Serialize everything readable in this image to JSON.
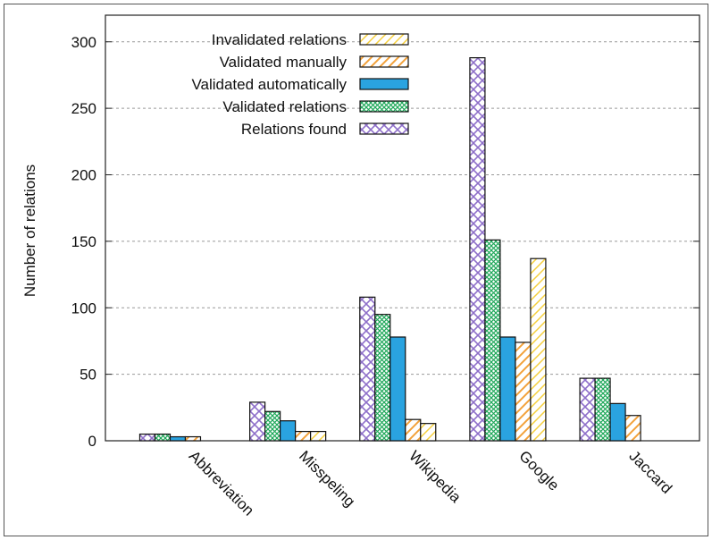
{
  "chart_data": {
    "type": "bar",
    "ylabel": "Number of relations",
    "xlabel": "",
    "ylim": [
      0,
      320
    ],
    "yticks": [
      0,
      50,
      100,
      150,
      200,
      250,
      300
    ],
    "grid": "horizontal dashed",
    "legend_position": "top-left",
    "categories": [
      "Abbreviation",
      "Misspeling",
      "Wikipedia",
      "Google",
      "Jaccard"
    ],
    "series": [
      {
        "name": "Relations found",
        "pattern": "diamond-hatch",
        "color": "#8e6fc9",
        "values": [
          5,
          29,
          108,
          288,
          47
        ]
      },
      {
        "name": "Validated relations",
        "pattern": "green-crosshatch",
        "color": "#1fa85a",
        "values": [
          5,
          22,
          95,
          151,
          47
        ]
      },
      {
        "name": "Validated automatically",
        "pattern": "solid-blue",
        "color": "#2aa3e0",
        "values": [
          3,
          15,
          78,
          78,
          28
        ]
      },
      {
        "name": "Validated manually",
        "pattern": "orange-diagonal",
        "color": "#f2a13a",
        "values": [
          3,
          7,
          16,
          74,
          19
        ]
      },
      {
        "name": "Invalidated relations",
        "pattern": "yellow-diagonal",
        "color": "#f5cf3c",
        "values": [
          null,
          7,
          13,
          137,
          null
        ]
      }
    ],
    "legend_order": [
      "Invalidated relations",
      "Validated manually",
      "Validated automatically",
      "Validated relations",
      "Relations found"
    ]
  }
}
